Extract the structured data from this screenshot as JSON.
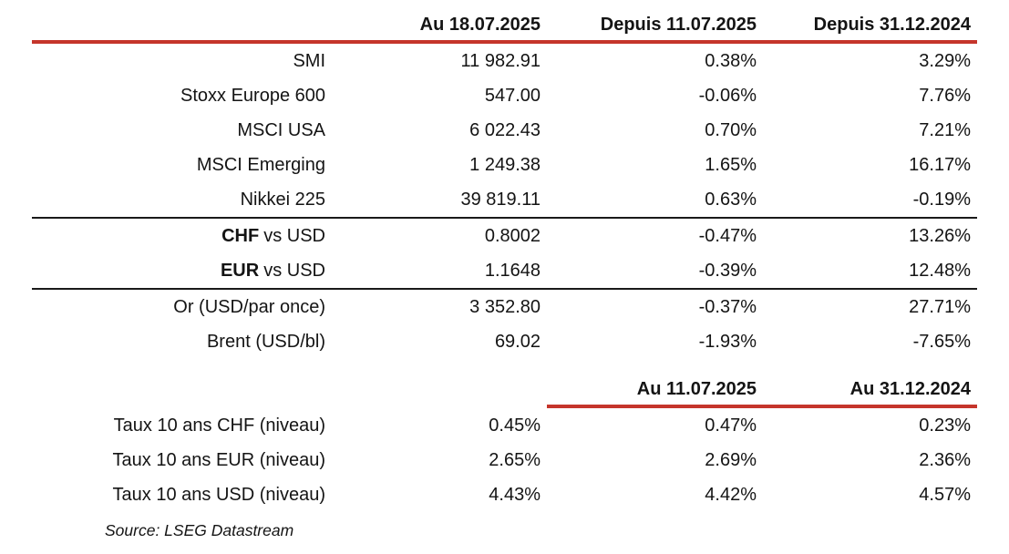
{
  "colors": {
    "accent_red": "#C5352B",
    "text": "#141414"
  },
  "table1": {
    "col_headers": [
      "Au 18.07.2025",
      "Depuis 11.07.2025",
      "Depuis 31.12.2024"
    ],
    "groups": {
      "indices": [
        {
          "bold": "",
          "label": "SMI",
          "last": "11 982.91",
          "chg_week": "0.38%",
          "chg_ytd": "3.29%"
        },
        {
          "bold": "",
          "label": "Stoxx Europe 600",
          "last": "547.00",
          "chg_week": "-0.06%",
          "chg_ytd": "7.76%"
        },
        {
          "bold": "",
          "label": "MSCI USA",
          "last": "6 022.43",
          "chg_week": "0.70%",
          "chg_ytd": "7.21%"
        },
        {
          "bold": "",
          "label": "MSCI Emerging",
          "last": "1 249.38",
          "chg_week": "1.65%",
          "chg_ytd": "16.17%"
        },
        {
          "bold": "",
          "label": "Nikkei 225",
          "last": "39 819.11",
          "chg_week": "0.63%",
          "chg_ytd": "-0.19%"
        }
      ],
      "currencies": [
        {
          "bold": "CHF",
          "label": "vs USD",
          "last": "0.8002",
          "chg_week": "-0.47%",
          "chg_ytd": "13.26%"
        },
        {
          "bold": "EUR",
          "label": "vs USD",
          "last": "1.1648",
          "chg_week": "-0.39%",
          "chg_ytd": "12.48%"
        }
      ],
      "commodities": [
        {
          "bold": "",
          "label": "Or (USD/par once)",
          "last": "3 352.80",
          "chg_week": "-0.37%",
          "chg_ytd": "27.71%"
        },
        {
          "bold": "",
          "label": "Brent (USD/bl)",
          "last": "69.02",
          "chg_week": "-1.93%",
          "chg_ytd": "-7.65%"
        }
      ]
    }
  },
  "table2": {
    "col_headers": [
      "Au 11.07.2025",
      "Au 31.12.2024"
    ],
    "rows": [
      {
        "label": "Taux 10 ans CHF (niveau)",
        "current": "0.45%",
        "week_ago": "0.47%",
        "year_end": "0.23%"
      },
      {
        "label": "Taux 10 ans EUR (niveau)",
        "current": "2.65%",
        "week_ago": "2.69%",
        "year_end": "2.36%"
      },
      {
        "label": "Taux 10 ans USD (niveau)",
        "current": "4.43%",
        "week_ago": "4.42%",
        "year_end": "4.57%"
      }
    ]
  },
  "source": "Source: LSEG Datastream"
}
